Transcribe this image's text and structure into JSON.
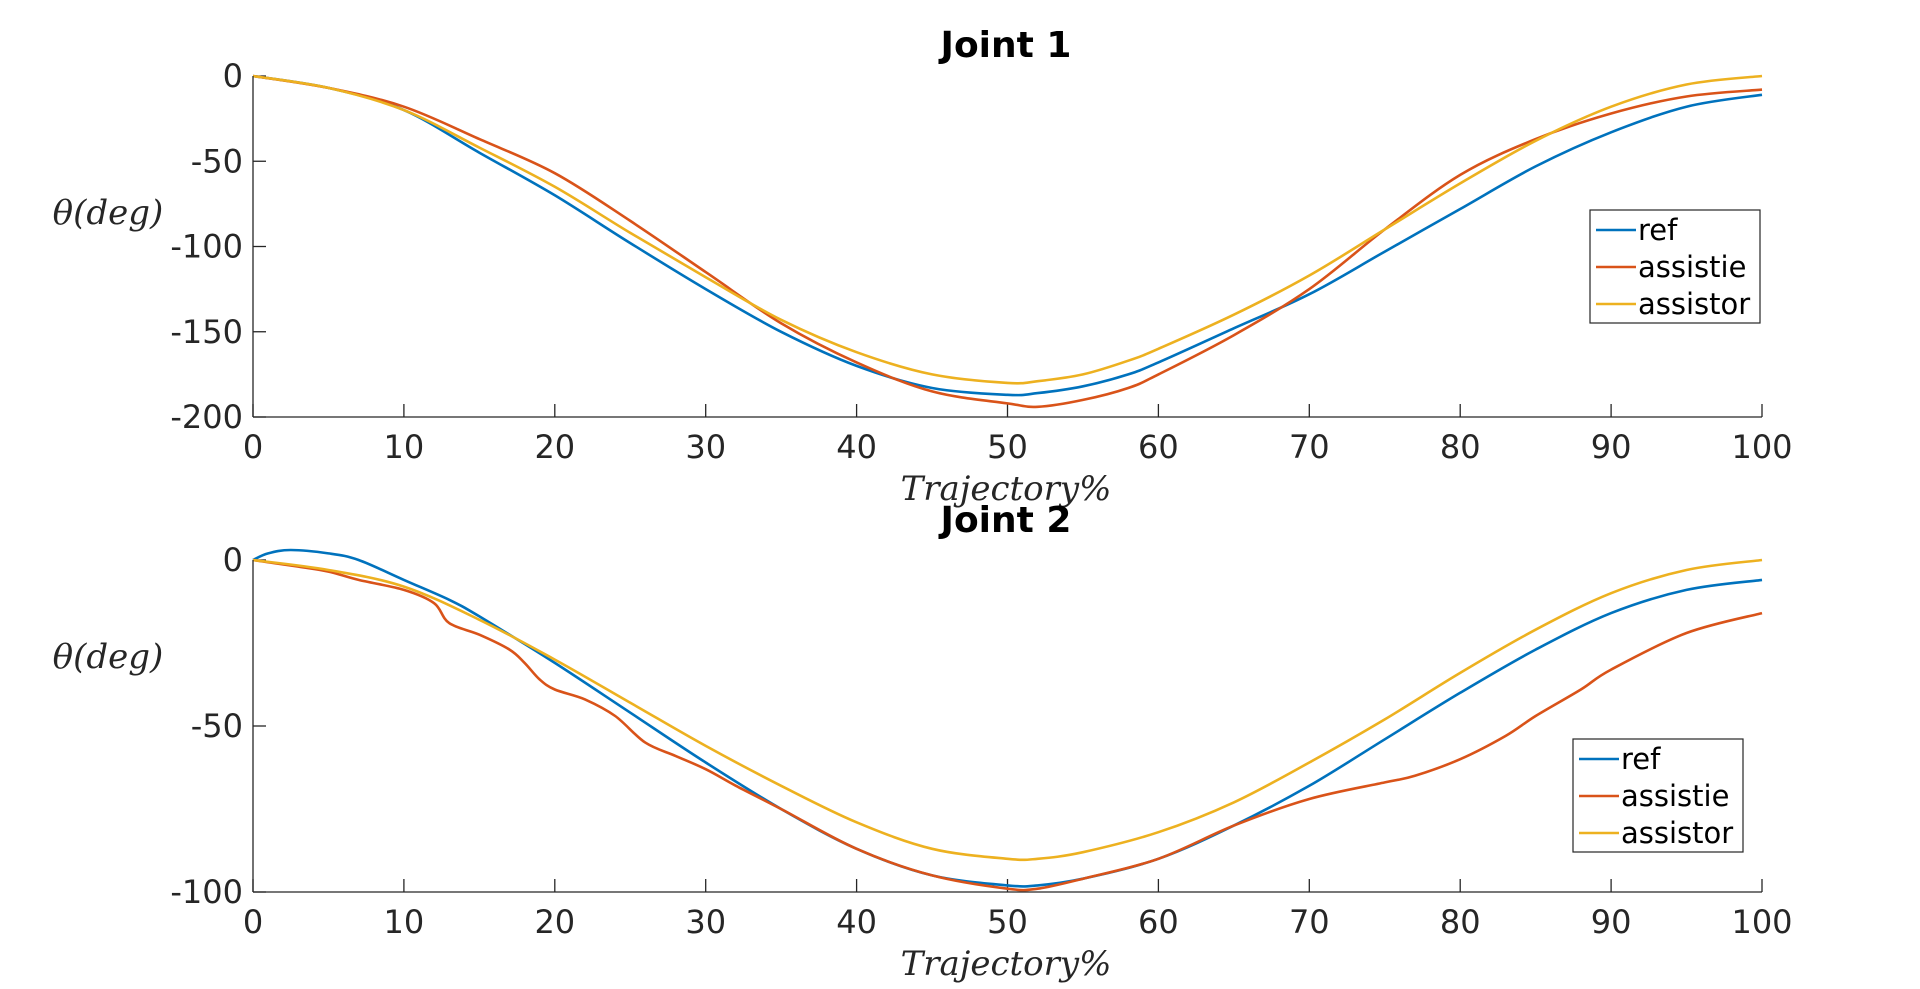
{
  "chart_data": [
    {
      "type": "line",
      "title": "Joint 1",
      "xlabel": "Trajectory%",
      "ylabel": "θ(deg)",
      "xlim": [
        0,
        100
      ],
      "ylim": [
        -200,
        0
      ],
      "xticks": [
        0,
        10,
        20,
        30,
        40,
        50,
        60,
        70,
        80,
        90,
        100
      ],
      "yticks": [
        0,
        -50,
        -100,
        -150,
        -200
      ],
      "xtick_labels": [
        "0",
        "10",
        "20",
        "30",
        "40",
        "50",
        "60",
        "70",
        "80",
        "90",
        "100"
      ],
      "ytick_labels": [
        "0",
        "-50",
        "-100",
        "-150",
        "-200"
      ],
      "legend": {
        "location": "right",
        "entries": [
          "ref",
          "assistie",
          "assistor"
        ]
      },
      "x": [
        0,
        5,
        10,
        15,
        20,
        25,
        30,
        35,
        40,
        45,
        50,
        52,
        55,
        58,
        60,
        65,
        70,
        75,
        80,
        85,
        90,
        95,
        100
      ],
      "series": [
        {
          "name": "ref",
          "color": "#0072BD",
          "values": [
            0,
            -7,
            -20,
            -45,
            -70,
            -98,
            -125,
            -150,
            -170,
            -183,
            -187,
            -186,
            -182,
            -175,
            -168,
            -148,
            -128,
            -103,
            -78,
            -53,
            -33,
            -18,
            -11
          ]
        },
        {
          "name": "assistie",
          "color": "#D95319",
          "values": [
            0,
            -7,
            -18,
            -37,
            -57,
            -85,
            -115,
            -145,
            -168,
            -185,
            -192,
            -194,
            -190,
            -183,
            -175,
            -152,
            -125,
            -90,
            -58,
            -37,
            -22,
            -12,
            -8
          ]
        },
        {
          "name": "assistor",
          "color": "#EDB120",
          "values": [
            0,
            -7,
            -20,
            -42,
            -65,
            -92,
            -118,
            -143,
            -162,
            -175,
            -180,
            -179,
            -175,
            -167,
            -160,
            -140,
            -117,
            -90,
            -63,
            -38,
            -18,
            -5,
            0
          ]
        }
      ]
    },
    {
      "type": "line",
      "title": "Joint 2",
      "xlabel": "Trajectory%",
      "ylabel": "θ(deg)",
      "xlim": [
        0,
        100
      ],
      "ylim": [
        -100,
        0
      ],
      "xticks": [
        0,
        10,
        20,
        30,
        40,
        50,
        60,
        70,
        80,
        90,
        100
      ],
      "yticks": [
        0,
        -50,
        -100
      ],
      "xtick_labels": [
        "0",
        "10",
        "20",
        "30",
        "40",
        "50",
        "60",
        "70",
        "80",
        "90",
        "100"
      ],
      "ytick_labels": [
        "0",
        "-50",
        "-100"
      ],
      "legend": {
        "location": "lower-right",
        "entries": [
          "ref",
          "assistie",
          "assistor"
        ]
      },
      "series": [
        {
          "name": "ref",
          "color": "#0072BD",
          "x": [
            0,
            1,
            2.5,
            5,
            7,
            10,
            13,
            15,
            20,
            25,
            30,
            35,
            40,
            45,
            50,
            52,
            55,
            60,
            65,
            70,
            75,
            80,
            85,
            90,
            95,
            100
          ],
          "values": [
            0,
            2,
            3,
            2,
            0,
            -6,
            -12,
            -17,
            -31,
            -46,
            -61,
            -75,
            -87,
            -95,
            -98,
            -98,
            -96,
            -90,
            -80,
            -68,
            -54,
            -40,
            -27,
            -16,
            -9,
            -6
          ]
        },
        {
          "name": "assistie",
          "color": "#D95319",
          "x": [
            0,
            3,
            5,
            7,
            10,
            12,
            13,
            15,
            17,
            18,
            19,
            20,
            22,
            24,
            26,
            28,
            30,
            32,
            35,
            40,
            45,
            50,
            52,
            55,
            60,
            65,
            70,
            75,
            77,
            80,
            83,
            85,
            88,
            90,
            95,
            100
          ],
          "values": [
            0,
            -2,
            -3.5,
            -6,
            -9,
            -13,
            -19,
            -22.5,
            -27,
            -31,
            -36,
            -39,
            -42,
            -47,
            -55,
            -59,
            -63,
            -68,
            -75,
            -87,
            -95,
            -99,
            -99,
            -96,
            -90,
            -80,
            -72,
            -67,
            -65,
            -60,
            -53,
            -47,
            -39,
            -33,
            -22,
            -16
          ]
        },
        {
          "name": "assistor",
          "color": "#EDB120",
          "x": [
            0,
            5,
            10,
            15,
            20,
            25,
            30,
            35,
            40,
            45,
            50,
            52,
            55,
            60,
            65,
            70,
            75,
            80,
            85,
            90,
            95,
            100
          ],
          "values": [
            0,
            -3,
            -8,
            -18,
            -30,
            -43,
            -56,
            -68,
            -79,
            -87,
            -90,
            -90,
            -88,
            -82,
            -73,
            -61,
            -48,
            -34,
            -21,
            -10,
            -3,
            0
          ]
        }
      ]
    }
  ]
}
